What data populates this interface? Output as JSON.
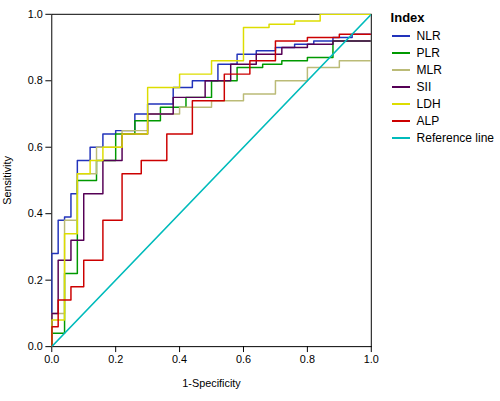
{
  "chart_data": {
    "type": "line",
    "xlabel": "1-Specificity",
    "ylabel": "Sensitivity",
    "legend_title": "Index",
    "legend": "right",
    "grid": false,
    "xlim": [
      0.0,
      1.0
    ],
    "ylim": [
      0.0,
      1.0
    ],
    "xticks": [
      {
        "value": 0.0,
        "label": "0.0"
      },
      0.2,
      0.4,
      0.6,
      0.8,
      {
        "value": 1.0,
        "label": "1.0"
      }
    ],
    "yticks": [
      {
        "value": 0.0,
        "label": "0.0"
      },
      0.2,
      0.4,
      0.6,
      0.8,
      {
        "value": 1.0,
        "label": "1.0"
      }
    ],
    "series": [
      {
        "name": "NLR",
        "color": "#2233bb",
        "x": [
          0.0,
          0.0,
          0.02,
          0.02,
          0.04,
          0.04,
          0.06,
          0.06,
          0.08,
          0.08,
          0.12,
          0.12,
          0.16,
          0.16,
          0.2,
          0.2,
          0.26,
          0.26,
          0.3,
          0.3,
          0.38,
          0.38,
          0.44,
          0.44,
          0.52,
          0.52,
          0.58,
          0.58,
          0.64,
          0.64,
          0.7,
          0.7,
          0.76,
          0.76,
          0.82,
          0.82,
          0.88,
          0.88,
          0.94,
          0.94,
          1.0
        ],
        "values": [
          0.0,
          0.28,
          0.28,
          0.38,
          0.38,
          0.39,
          0.39,
          0.46,
          0.46,
          0.56,
          0.56,
          0.6,
          0.6,
          0.64,
          0.64,
          0.65,
          0.65,
          0.7,
          0.7,
          0.73,
          0.73,
          0.78,
          0.78,
          0.8,
          0.8,
          0.85,
          0.85,
          0.88,
          0.88,
          0.89,
          0.89,
          0.9,
          0.9,
          0.91,
          0.91,
          0.92,
          0.92,
          0.93,
          0.93,
          0.94,
          0.94
        ]
      },
      {
        "name": "PLR",
        "color": "#009900",
        "x": [
          0.0,
          0.0,
          0.04,
          0.04,
          0.08,
          0.08,
          0.14,
          0.14,
          0.2,
          0.2,
          0.26,
          0.26,
          0.34,
          0.34,
          0.42,
          0.42,
          0.5,
          0.5,
          0.58,
          0.58,
          0.66,
          0.66,
          0.72,
          0.72,
          0.8,
          0.8,
          0.88,
          0.88,
          1.0
        ],
        "values": [
          0.0,
          0.04,
          0.04,
          0.22,
          0.22,
          0.5,
          0.5,
          0.56,
          0.56,
          0.64,
          0.64,
          0.68,
          0.68,
          0.72,
          0.72,
          0.75,
          0.75,
          0.8,
          0.8,
          0.84,
          0.84,
          0.85,
          0.85,
          0.86,
          0.86,
          0.87,
          0.87,
          0.92,
          0.92
        ]
      },
      {
        "name": "MLR",
        "color": "#bbbb77",
        "x": [
          0.0,
          0.0,
          0.04,
          0.04,
          0.08,
          0.08,
          0.14,
          0.14,
          0.22,
          0.22,
          0.3,
          0.3,
          0.4,
          0.4,
          0.5,
          0.5,
          0.6,
          0.6,
          0.7,
          0.7,
          0.8,
          0.8,
          0.9,
          0.9,
          1.0
        ],
        "values": [
          0.0,
          0.1,
          0.1,
          0.38,
          0.38,
          0.52,
          0.52,
          0.6,
          0.6,
          0.65,
          0.65,
          0.7,
          0.7,
          0.72,
          0.72,
          0.74,
          0.74,
          0.76,
          0.76,
          0.8,
          0.8,
          0.84,
          0.84,
          0.86,
          0.86
        ]
      },
      {
        "name": "SII",
        "color": "#550055",
        "x": [
          0.0,
          0.0,
          0.02,
          0.02,
          0.06,
          0.06,
          0.1,
          0.1,
          0.16,
          0.16,
          0.22,
          0.22,
          0.3,
          0.3,
          0.38,
          0.38,
          0.48,
          0.48,
          0.56,
          0.56,
          0.64,
          0.64,
          0.72,
          0.72,
          0.8,
          0.8,
          0.88,
          0.88,
          1.0
        ],
        "values": [
          0.0,
          0.1,
          0.1,
          0.26,
          0.26,
          0.32,
          0.32,
          0.46,
          0.46,
          0.56,
          0.56,
          0.64,
          0.64,
          0.7,
          0.7,
          0.75,
          0.75,
          0.8,
          0.8,
          0.85,
          0.85,
          0.88,
          0.88,
          0.9,
          0.9,
          0.91,
          0.91,
          0.92,
          0.92
        ]
      },
      {
        "name": "LDH",
        "color": "#dddd00",
        "x": [
          0.0,
          0.0,
          0.04,
          0.04,
          0.08,
          0.08,
          0.12,
          0.12,
          0.16,
          0.16,
          0.22,
          0.22,
          0.3,
          0.3,
          0.4,
          0.4,
          0.5,
          0.5,
          0.6,
          0.6,
          0.68,
          0.68,
          0.76,
          0.76,
          0.84,
          0.84,
          1.0
        ],
        "values": [
          0.0,
          0.08,
          0.08,
          0.34,
          0.34,
          0.52,
          0.52,
          0.56,
          0.56,
          0.6,
          0.6,
          0.64,
          0.64,
          0.78,
          0.78,
          0.82,
          0.82,
          0.86,
          0.86,
          0.96,
          0.96,
          0.97,
          0.97,
          0.98,
          0.98,
          1.0,
          1.0
        ]
      },
      {
        "name": "ALP",
        "color": "#cc0000",
        "x": [
          0.0,
          0.0,
          0.02,
          0.02,
          0.06,
          0.06,
          0.1,
          0.1,
          0.16,
          0.16,
          0.22,
          0.22,
          0.28,
          0.28,
          0.36,
          0.36,
          0.44,
          0.44,
          0.54,
          0.54,
          0.62,
          0.62,
          0.7,
          0.7,
          0.8,
          0.8,
          0.9,
          0.9,
          1.0
        ],
        "values": [
          0.0,
          0.06,
          0.06,
          0.14,
          0.14,
          0.18,
          0.18,
          0.26,
          0.26,
          0.38,
          0.38,
          0.52,
          0.52,
          0.56,
          0.56,
          0.64,
          0.64,
          0.74,
          0.74,
          0.82,
          0.82,
          0.86,
          0.86,
          0.92,
          0.92,
          0.93,
          0.93,
          0.94,
          0.94
        ]
      },
      {
        "name": "Reference line",
        "color": "#00bbbb",
        "x": [
          0,
          1
        ],
        "values": [
          0,
          1
        ]
      }
    ]
  }
}
